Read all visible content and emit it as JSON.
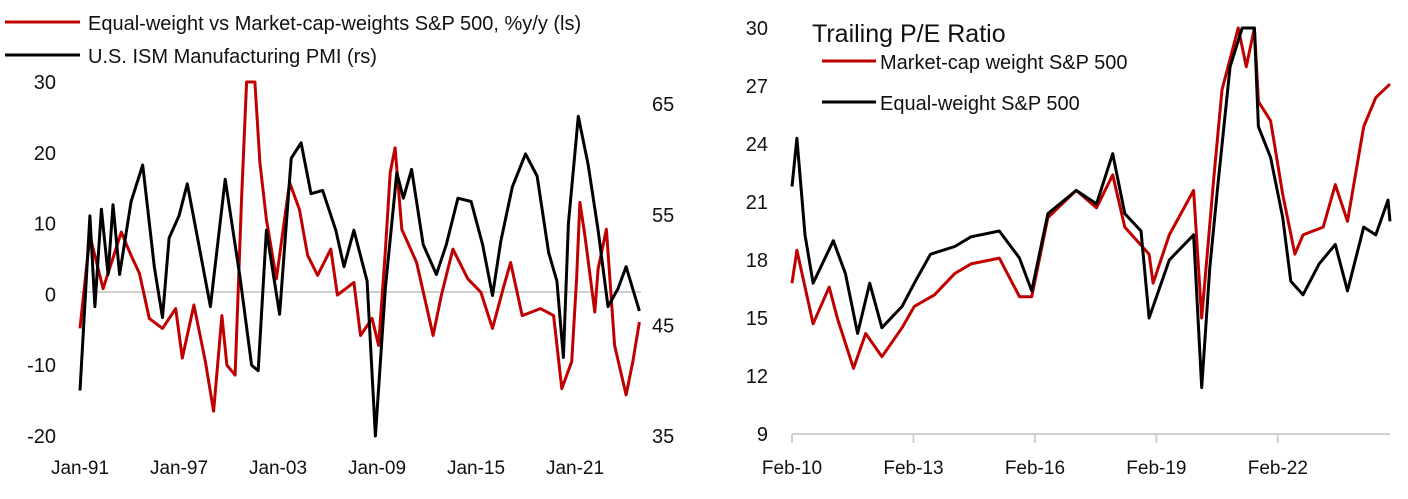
{
  "colors": {
    "red": "#c00000",
    "black": "#000000",
    "grid": "#d0d0d0"
  },
  "chart_data": [
    {
      "type": "line",
      "title": "",
      "legend": [
        "Equal-weight vs Market-cap-weights S&P 500, %y/y (ls)",
        "U.S. ISM Manufacturing PMI (rs)"
      ],
      "legend_placement": "top-left",
      "xlim": [
        1991.0,
        2025.0
      ],
      "x_ticks": [
        {
          "x": 1991.0,
          "label": "Jan-91"
        },
        {
          "x": 1997.0,
          "label": "Jan-97"
        },
        {
          "x": 2003.0,
          "label": "Jan-03"
        },
        {
          "x": 2009.0,
          "label": "Jan-09"
        },
        {
          "x": 2015.0,
          "label": "Jan-15"
        },
        {
          "x": 2021.0,
          "label": "Jan-21"
        }
      ],
      "ylim_left": [
        -20,
        30
      ],
      "y_ticks_left": [
        "30",
        "20",
        "10",
        "0",
        "-10",
        "-20"
      ],
      "ylim_right": [
        35,
        67
      ],
      "y_ticks_right": [
        "65",
        "55",
        "45",
        "35"
      ],
      "series": [
        {
          "name": "Equal-weight vs Market-cap-weights S&P 500, %y/y (ls)",
          "axis": "left",
          "color": "#c00000",
          "x": [
            1991.0,
            1991.6,
            1992.4,
            1993.5,
            1994.1,
            1994.6,
            1995.2,
            1996.0,
            1996.8,
            1997.2,
            1997.9,
            1998.6,
            1999.1,
            1999.6,
            1999.9,
            2000.4,
            2000.8,
            2001.1,
            2001.6,
            2001.9,
            2002.3,
            2002.9,
            2003.7,
            2004.3,
            2004.8,
            2005.4,
            2006.2,
            2006.6,
            2007.6,
            2008.0,
            2008.7,
            2009.1,
            2009.5,
            2009.8,
            2010.1,
            2010.5,
            2011.4,
            2012.4,
            2012.9,
            2013.6,
            2014.5,
            2015.3,
            2016.0,
            2016.7,
            2017.1,
            2017.8,
            2018.9,
            2019.7,
            2020.2,
            2020.8,
            2021.1,
            2021.3,
            2021.6,
            2022.2,
            2022.4,
            2022.9,
            2023.4,
            2024.1,
            2024.5,
            2024.9
          ],
          "y": [
            -4.8,
            8.3,
            0.8,
            8.8,
            5.5,
            3,
            -3.4,
            -4.8,
            -2,
            -9,
            -1.5,
            -9.5,
            -16.5,
            -3,
            -10,
            -11.4,
            14,
            30,
            30,
            18.6,
            10.6,
            2.2,
            15.8,
            12,
            5.5,
            2.7,
            6.4,
            -0.1,
            1.7,
            -5.8,
            -3.4,
            -7.2,
            6,
            17.2,
            20.7,
            9.2,
            4.5,
            -5.8,
            -0.1,
            6.4,
            2.2,
            0.3,
            -4.8,
            1.3,
            4.5,
            -3,
            -2,
            -3,
            -13.3,
            -9.5,
            2.2,
            13,
            8.3,
            -2.5,
            3.6,
            9.2,
            -7.2,
            -14.2,
            -9.5,
            -3.9
          ]
        },
        {
          "name": "U.S. ISM Manufacturing PMI (rs)",
          "axis": "right",
          "color": "#000000",
          "x": [
            1991.0,
            1991.6,
            1991.9,
            1992.3,
            1992.7,
            1993.0,
            1993.4,
            1994.1,
            1994.8,
            1995.5,
            1996.0,
            1996.4,
            1997.0,
            1997.5,
            1998.2,
            1998.9,
            1999.8,
            2000.7,
            2001.4,
            2001.8,
            2002.3,
            2003.1,
            2003.8,
            2004.4,
            2005.0,
            2005.7,
            2006.5,
            2007.0,
            2007.6,
            2008.4,
            2008.9,
            2009.5,
            2010.2,
            2010.6,
            2011.1,
            2011.8,
            2012.6,
            2013.2,
            2013.9,
            2014.7,
            2015.4,
            2016.0,
            2016.5,
            2017.2,
            2018.0,
            2018.7,
            2019.4,
            2019.9,
            2020.3,
            2020.6,
            2021.2,
            2021.8,
            2022.4,
            2023.0,
            2023.6,
            2024.1,
            2024.9
          ],
          "y": [
            39.1,
            54.9,
            46.7,
            55.5,
            49.6,
            55.9,
            49.6,
            56.2,
            59.5,
            50.3,
            45.7,
            52.9,
            54.9,
            57.8,
            52.3,
            46.7,
            58.2,
            49.3,
            41.4,
            40.9,
            53.6,
            46,
            60.1,
            61.5,
            56.9,
            57.2,
            53.6,
            50.3,
            53.6,
            49,
            35,
            48.3,
            58.8,
            56.5,
            59.1,
            52.3,
            49.6,
            52.3,
            56.5,
            56.2,
            52.3,
            47.7,
            52.6,
            57.5,
            60.5,
            58.5,
            51.6,
            49,
            42.1,
            54.2,
            63.9,
            59.5,
            53.6,
            46.7,
            48.3,
            50.3,
            46.3
          ]
        }
      ]
    },
    {
      "type": "line",
      "title": "Trailing P/E Ratio",
      "legend": [
        "Market-cap weight S&P 500",
        "Equal-weight S&P 500"
      ],
      "legend_placement": "top-left",
      "xlim": [
        2010.08,
        2024.85
      ],
      "x_ticks": [
        {
          "x": 2010.08,
          "label": "Feb-10"
        },
        {
          "x": 2013.08,
          "label": "Feb-13"
        },
        {
          "x": 2016.08,
          "label": "Feb-16"
        },
        {
          "x": 2019.08,
          "label": "Feb-19"
        },
        {
          "x": 2022.08,
          "label": "Feb-22"
        }
      ],
      "ylim": [
        9,
        30
      ],
      "y_ticks": [
        "30",
        "27",
        "24",
        "21",
        "18",
        "15",
        "12",
        "9"
      ],
      "series": [
        {
          "name": "Market-cap weight S&P 500",
          "color": "#c00000",
          "x": [
            2010.08,
            2010.2,
            2010.6,
            2011.0,
            2011.2,
            2011.6,
            2011.9,
            2012.3,
            2012.8,
            2013.1,
            2013.6,
            2014.1,
            2014.5,
            2015.2,
            2015.7,
            2016.0,
            2016.4,
            2017.1,
            2017.6,
            2018.0,
            2018.3,
            2018.9,
            2019.0,
            2019.4,
            2020.0,
            2020.2,
            2020.5,
            2020.7,
            2021.1,
            2021.3,
            2021.5,
            2021.6,
            2021.9,
            2022.2,
            2022.5,
            2022.7,
            2023.2,
            2023.5,
            2023.8,
            2024.2,
            2024.5,
            2024.85
          ],
          "y": [
            16.8,
            18.5,
            14.7,
            16.6,
            15,
            12.4,
            14.2,
            13,
            14.5,
            15.6,
            16.2,
            17.3,
            17.8,
            18.1,
            16.1,
            16.1,
            20.2,
            21.6,
            20.7,
            22.4,
            19.7,
            18.3,
            16.8,
            19.3,
            21.6,
            15,
            22.3,
            26.8,
            30,
            28,
            30,
            26.2,
            25.2,
            21.4,
            18.3,
            19.3,
            19.7,
            21.9,
            20,
            24.9,
            26.4,
            27.1
          ]
        },
        {
          "name": "Equal-weight S&P 500",
          "color": "#000000",
          "x": [
            2010.08,
            2010.2,
            2010.4,
            2010.6,
            2011.1,
            2011.4,
            2011.7,
            2012.0,
            2012.3,
            2012.8,
            2013.1,
            2013.5,
            2014.1,
            2014.5,
            2015.2,
            2015.7,
            2016.0,
            2016.4,
            2017.1,
            2017.6,
            2018.0,
            2018.3,
            2018.7,
            2018.9,
            2019.4,
            2020.0,
            2020.2,
            2020.4,
            2020.6,
            2020.9,
            2021.2,
            2021.5,
            2021.6,
            2021.9,
            2022.2,
            2022.4,
            2022.7,
            2023.1,
            2023.5,
            2023.8,
            2024.2,
            2024.5,
            2024.8,
            2024.85
          ],
          "y": [
            21.8,
            24.3,
            19.3,
            16.8,
            19,
            17.3,
            14.2,
            16.8,
            14.5,
            15.6,
            16.8,
            18.3,
            18.7,
            19.2,
            19.5,
            18.1,
            16.4,
            20.4,
            21.6,
            20.9,
            23.5,
            20.4,
            19.5,
            15,
            18,
            19.3,
            11.4,
            17.6,
            21.9,
            28,
            30,
            30,
            24.9,
            23.3,
            20.2,
            16.9,
            16.2,
            17.8,
            18.8,
            16.4,
            19.7,
            19.3,
            21.1,
            20
          ]
        }
      ]
    }
  ]
}
